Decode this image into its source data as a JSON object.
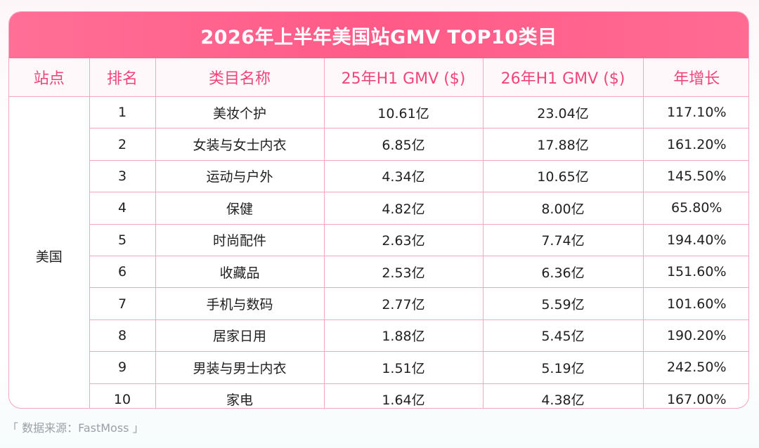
{
  "chart_data": {
    "type": "table",
    "title": "2026年上半年美国站GMV TOP10类目",
    "columns": [
      "站点",
      "排名",
      "类目名称",
      "25年H1 GMV ($)",
      "26年H1 GMV ($)",
      "年增长"
    ],
    "site": "美国",
    "rows": [
      {
        "rank": "1",
        "category": "美妆个护",
        "gmv25": "10.61亿",
        "gmv26": "23.04亿",
        "growth": "117.10%"
      },
      {
        "rank": "2",
        "category": "女装与女士内衣",
        "gmv25": "6.85亿",
        "gmv26": "17.88亿",
        "growth": "161.20%"
      },
      {
        "rank": "3",
        "category": "运动与户外",
        "gmv25": "4.34亿",
        "gmv26": "10.65亿",
        "growth": "145.50%"
      },
      {
        "rank": "4",
        "category": "保健",
        "gmv25": "4.82亿",
        "gmv26": "8.00亿",
        "growth": "65.80%"
      },
      {
        "rank": "5",
        "category": "时尚配件",
        "gmv25": "2.63亿",
        "gmv26": "7.74亿",
        "growth": "194.40%"
      },
      {
        "rank": "6",
        "category": "收藏品",
        "gmv25": "2.53亿",
        "gmv26": "6.36亿",
        "growth": "151.60%"
      },
      {
        "rank": "7",
        "category": "手机与数码",
        "gmv25": "2.77亿",
        "gmv26": "5.59亿",
        "growth": "101.60%"
      },
      {
        "rank": "8",
        "category": "居家日用",
        "gmv25": "1.88亿",
        "gmv26": "5.45亿",
        "growth": "190.20%"
      },
      {
        "rank": "9",
        "category": "男装与男士内衣",
        "gmv25": "1.51亿",
        "gmv26": "5.19亿",
        "growth": "242.50%"
      },
      {
        "rank": "10",
        "category": "家电",
        "gmv25": "1.64亿",
        "gmv26": "4.38亿",
        "growth": "167.00%"
      }
    ]
  },
  "source": "「 数据来源：FastMoss 」",
  "colors": {
    "accent": "#ff5a88",
    "header_text": "#f0457a",
    "border": "#f3a6bf"
  }
}
